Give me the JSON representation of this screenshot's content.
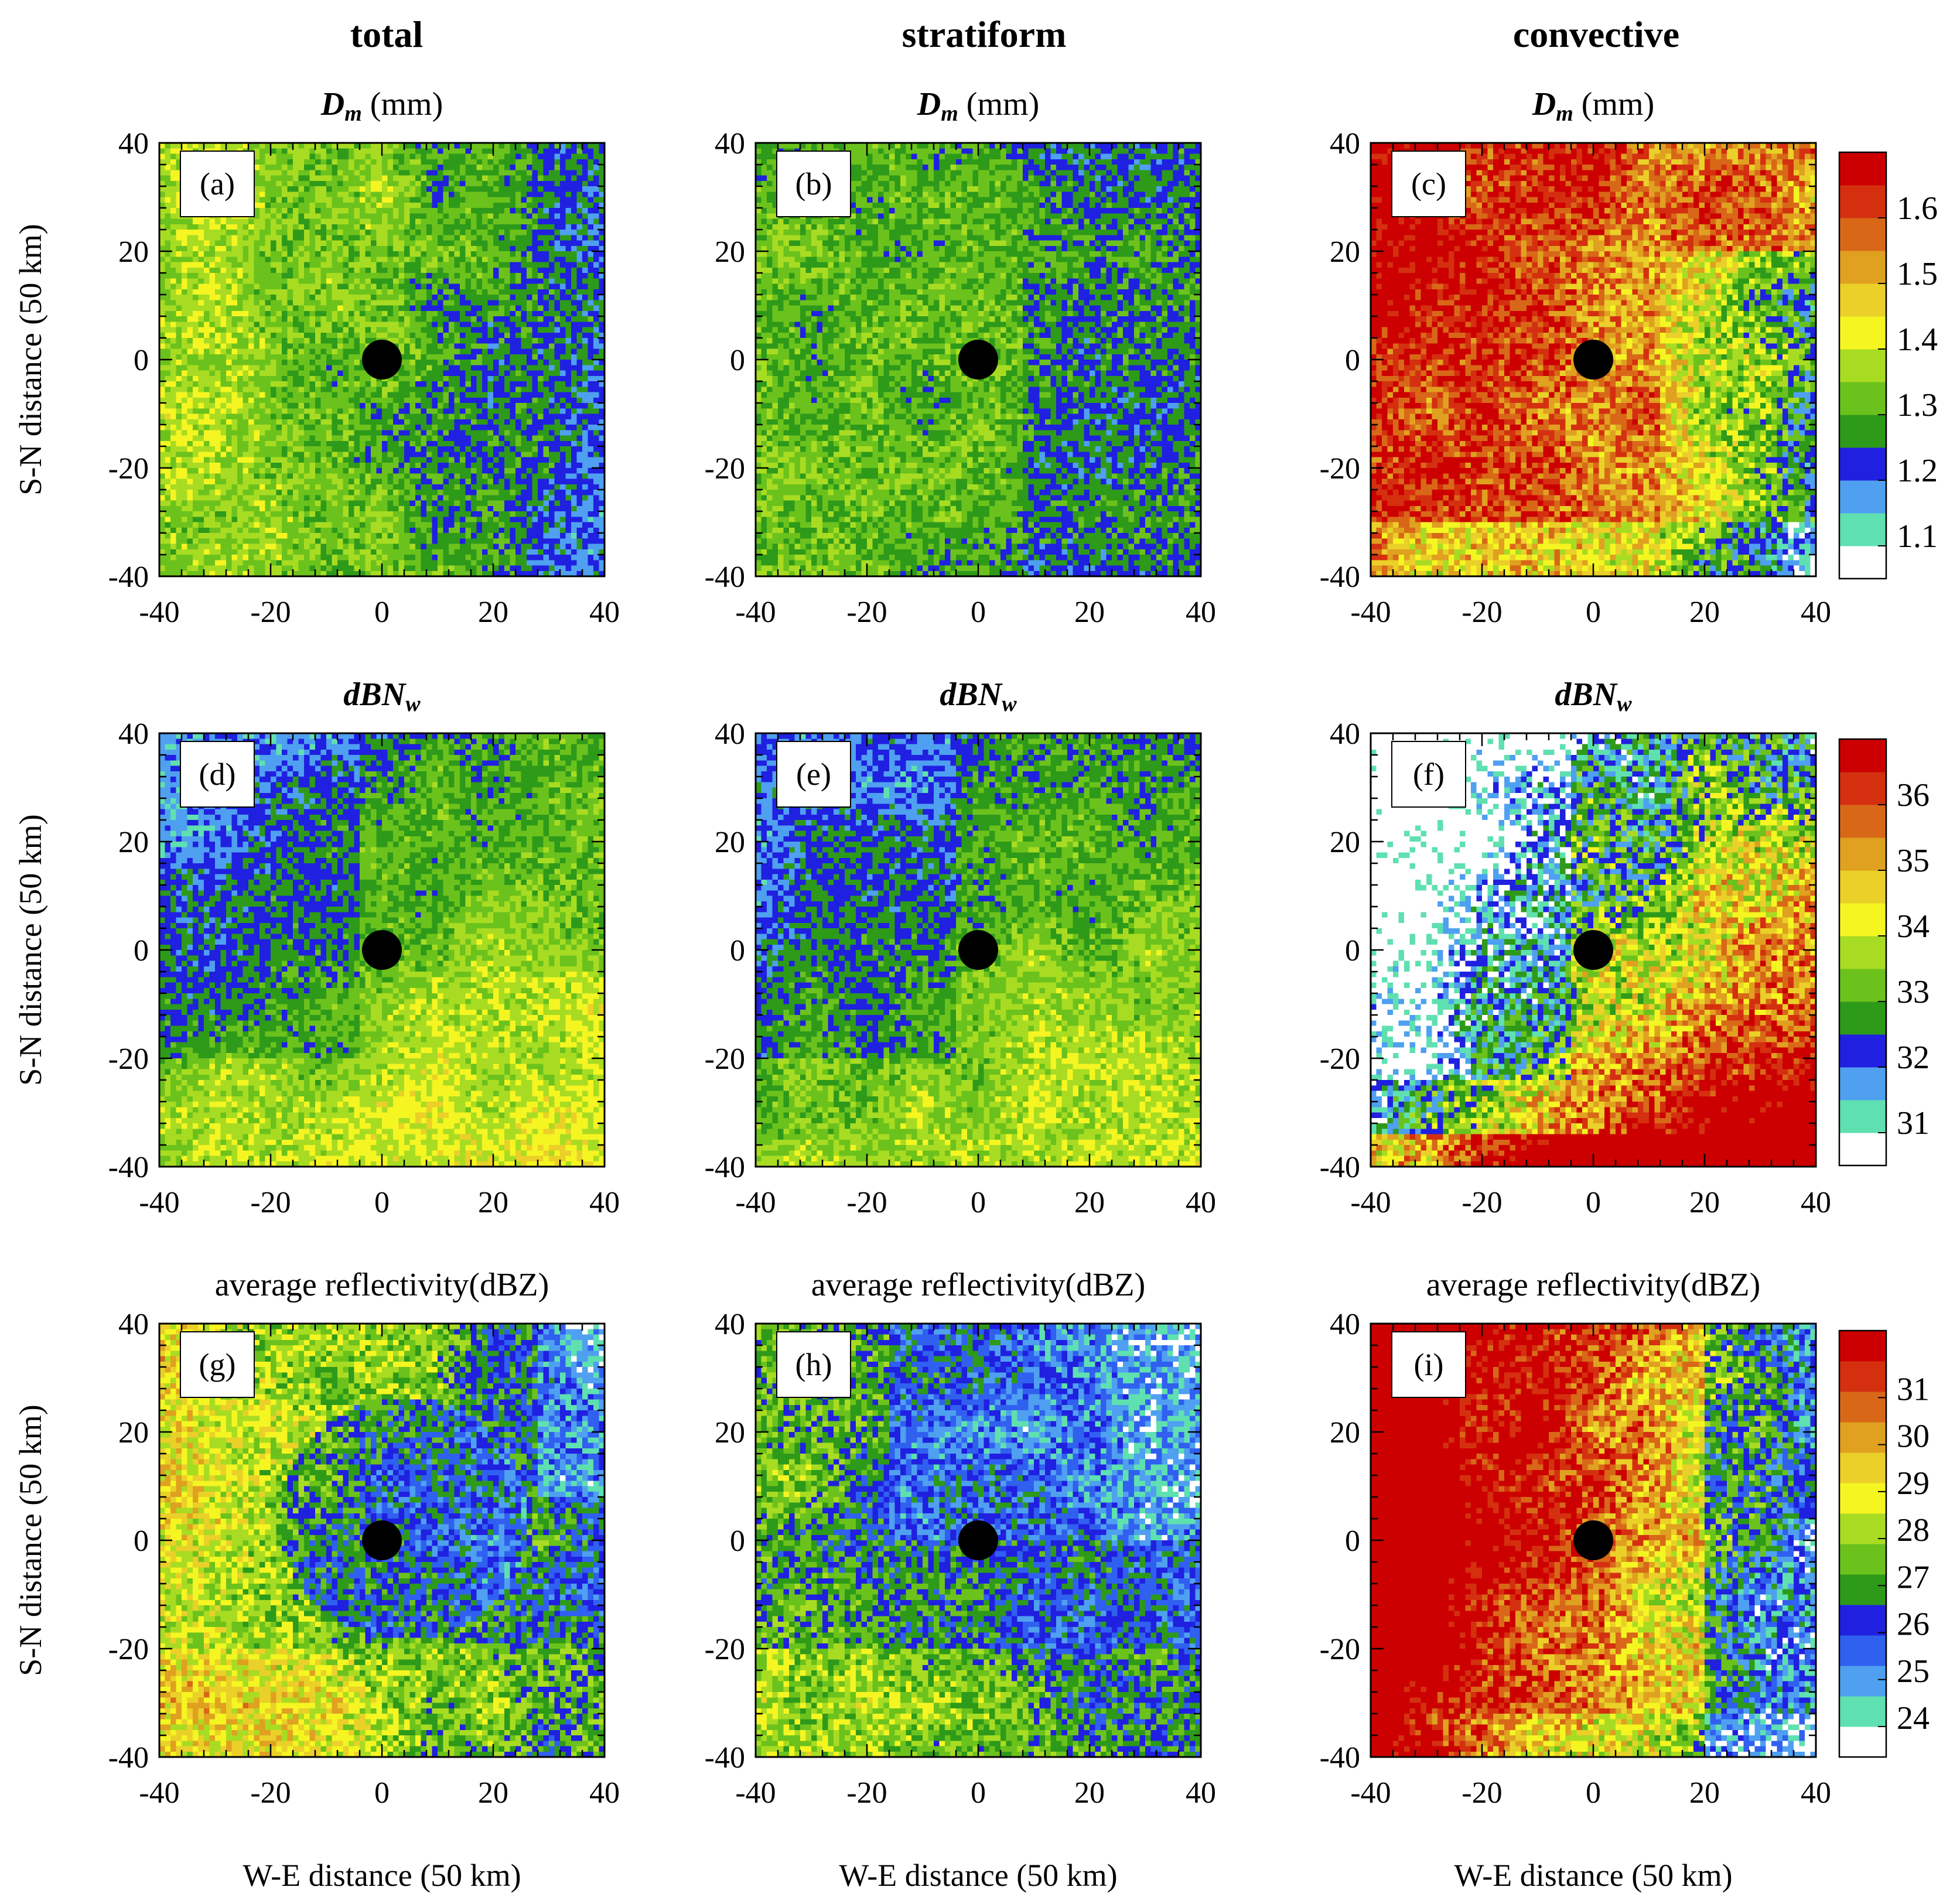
{
  "figure": {
    "column_titles": [
      "total",
      "stratiform",
      "convective"
    ],
    "rows": [
      {
        "var_symbol": "Dm",
        "var_units": " (mm)",
        "var_type": "Dm"
      },
      {
        "var_symbol": "dBNw",
        "var_units": "",
        "var_type": "Nw"
      },
      {
        "var_symbol": "",
        "var_units": "average reflectivity(dBZ)",
        "var_type": "Z"
      }
    ],
    "ylabel": "S-N distance (50 km)",
    "xlabel": "W-E distance (50 km)"
  },
  "chart_data": [
    {
      "type": "heatmap",
      "panel": "(a)",
      "column": "total",
      "title": "Dm (mm)",
      "xlabel": "",
      "ylabel": "S-N distance (50 km)",
      "xlim": [
        -40,
        40
      ],
      "ylim": [
        -40,
        40
      ],
      "xticks": [
        -40,
        -20,
        0,
        20,
        40
      ],
      "yticks": [
        -40,
        -20,
        0,
        20,
        40
      ],
      "center_marker": [
        0,
        0
      ],
      "pattern": "Green (1.3–1.4 mm) dominant; yellow 1.4–1.5 mm in west; blue 1.2 mm patches in east"
    },
    {
      "type": "heatmap",
      "panel": "(b)",
      "column": "stratiform",
      "title": "Dm (mm)",
      "xlabel": "",
      "ylabel": "",
      "xlim": [
        -40,
        40
      ],
      "ylim": [
        -40,
        40
      ],
      "xticks": [
        -40,
        -20,
        0,
        20,
        40
      ],
      "yticks": [
        -40,
        -20,
        0,
        20,
        40
      ],
      "center_marker": [
        0,
        0
      ],
      "pattern": "Green 1.3 mm dominant with scattered blue 1.2 mm, more blue in east"
    },
    {
      "type": "heatmap",
      "panel": "(c)",
      "column": "convective",
      "title": "Dm (mm)",
      "xlabel": "",
      "ylabel": "",
      "xlim": [
        -40,
        40
      ],
      "ylim": [
        -40,
        40
      ],
      "xticks": [
        -40,
        -20,
        0,
        20,
        40
      ],
      "yticks": [
        -40,
        -20,
        0,
        20,
        40
      ],
      "center_marker": [
        0,
        0
      ],
      "pattern": "Red >1.6 mm dominant west/north; white/blue <1.2 mm in southeast"
    },
    {
      "type": "heatmap",
      "panel": "(d)",
      "column": "total",
      "title": "dBNw",
      "xlabel": "",
      "ylabel": "S-N distance (50 km)",
      "xlim": [
        -40,
        40
      ],
      "ylim": [
        -40,
        40
      ],
      "xticks": [
        -40,
        -20,
        0,
        20,
        40
      ],
      "yticks": [
        -40,
        -20,
        0,
        20,
        40
      ],
      "center_marker": [
        0,
        0
      ],
      "pattern": "Blue 32 in northwest; green 33 center/east; yellow 34–35 in south"
    },
    {
      "type": "heatmap",
      "panel": "(e)",
      "column": "stratiform",
      "title": "dBNw",
      "xlabel": "",
      "ylabel": "",
      "xlim": [
        -40,
        40
      ],
      "ylim": [
        -40,
        40
      ],
      "xticks": [
        -40,
        -20,
        0,
        20,
        40
      ],
      "yticks": [
        -40,
        -20,
        0,
        20,
        40
      ],
      "center_marker": [
        0,
        0
      ],
      "pattern": "Blue 32 in northwest; green 33 center/east; yellow 34 in south"
    },
    {
      "type": "heatmap",
      "panel": "(f)",
      "column": "convective",
      "title": "dBNw",
      "xlabel": "",
      "ylabel": "",
      "xlim": [
        -40,
        40
      ],
      "ylim": [
        -40,
        40
      ],
      "xticks": [
        -40,
        -20,
        0,
        20,
        40
      ],
      "yticks": [
        -40,
        -20,
        0,
        20,
        40
      ],
      "center_marker": [
        0,
        0
      ],
      "pattern": "White <31 in northwest; red >36 in southeast"
    },
    {
      "type": "heatmap",
      "panel": "(g)",
      "column": "total",
      "title": "average reflectivity(dBZ)",
      "xlabel": "W-E distance (50 km)",
      "ylabel": "S-N distance (50 km)",
      "xlim": [
        -40,
        40
      ],
      "ylim": [
        -40,
        40
      ],
      "xticks": [
        -40,
        -20,
        0,
        20,
        40
      ],
      "yticks": [
        -40,
        -20,
        0,
        20,
        40
      ],
      "center_marker": [
        0,
        0
      ],
      "pattern": "Yellow/green 27–29 in west; blue/white 24–26 in east around center"
    },
    {
      "type": "heatmap",
      "panel": "(h)",
      "column": "stratiform",
      "title": "average reflectivity(dBZ)",
      "xlabel": "W-E distance (50 km)",
      "ylabel": "",
      "xlim": [
        -40,
        40
      ],
      "ylim": [
        -40,
        40
      ],
      "xticks": [
        -40,
        -20,
        0,
        20,
        40
      ],
      "yticks": [
        -40,
        -20,
        0,
        20,
        40
      ],
      "center_marker": [
        0,
        0
      ],
      "pattern": "Blue 25–26 dominant; white patches northeast; yellow/green 27–28 in west and south"
    },
    {
      "type": "heatmap",
      "panel": "(i)",
      "column": "convective",
      "title": "average reflectivity(dBZ)",
      "xlabel": "W-E distance (50 km)",
      "ylabel": "",
      "xlim": [
        -40,
        40
      ],
      "ylim": [
        -40,
        40
      ],
      "xticks": [
        -40,
        -20,
        0,
        20,
        40
      ],
      "yticks": [
        -40,
        -20,
        0,
        20,
        40
      ],
      "center_marker": [
        0,
        0
      ],
      "pattern": "Red >31 dominant in west/north; white/blue <26 in east"
    }
  ],
  "colorbars": [
    {
      "row": 0,
      "variable": "Dm (mm)",
      "colors": [
        "#ffffff",
        "#5fe0b0",
        "#4fa0f0",
        "#2020e0",
        "#2e9a1a",
        "#6cc21c",
        "#a8dc22",
        "#f5f522",
        "#ead028",
        "#e0a020",
        "#d86818",
        "#d43010",
        "#cc0000"
      ],
      "labels": [
        "1.1",
        "1.2",
        "1.3",
        "1.4",
        "1.5",
        "1.6"
      ]
    },
    {
      "row": 1,
      "variable": "dBNw",
      "colors": [
        "#ffffff",
        "#5fe0b0",
        "#4fa0f0",
        "#2020e0",
        "#2e9a1a",
        "#6cc21c",
        "#a8dc22",
        "#f5f522",
        "#ead028",
        "#e0a020",
        "#d86818",
        "#d43010",
        "#cc0000"
      ],
      "labels": [
        "31",
        "32",
        "33",
        "34",
        "35",
        "36"
      ]
    },
    {
      "row": 2,
      "variable": "average reflectivity(dBZ)",
      "colors": [
        "#ffffff",
        "#5fe0b0",
        "#4fa0f0",
        "#3060f0",
        "#2020e0",
        "#2e9a1a",
        "#6cc21c",
        "#a8dc22",
        "#f5f522",
        "#ead028",
        "#e0a020",
        "#d86818",
        "#d43010",
        "#cc0000"
      ],
      "labels": [
        "24",
        "25",
        "26",
        "27",
        "28",
        "29",
        "30",
        "31"
      ]
    }
  ]
}
